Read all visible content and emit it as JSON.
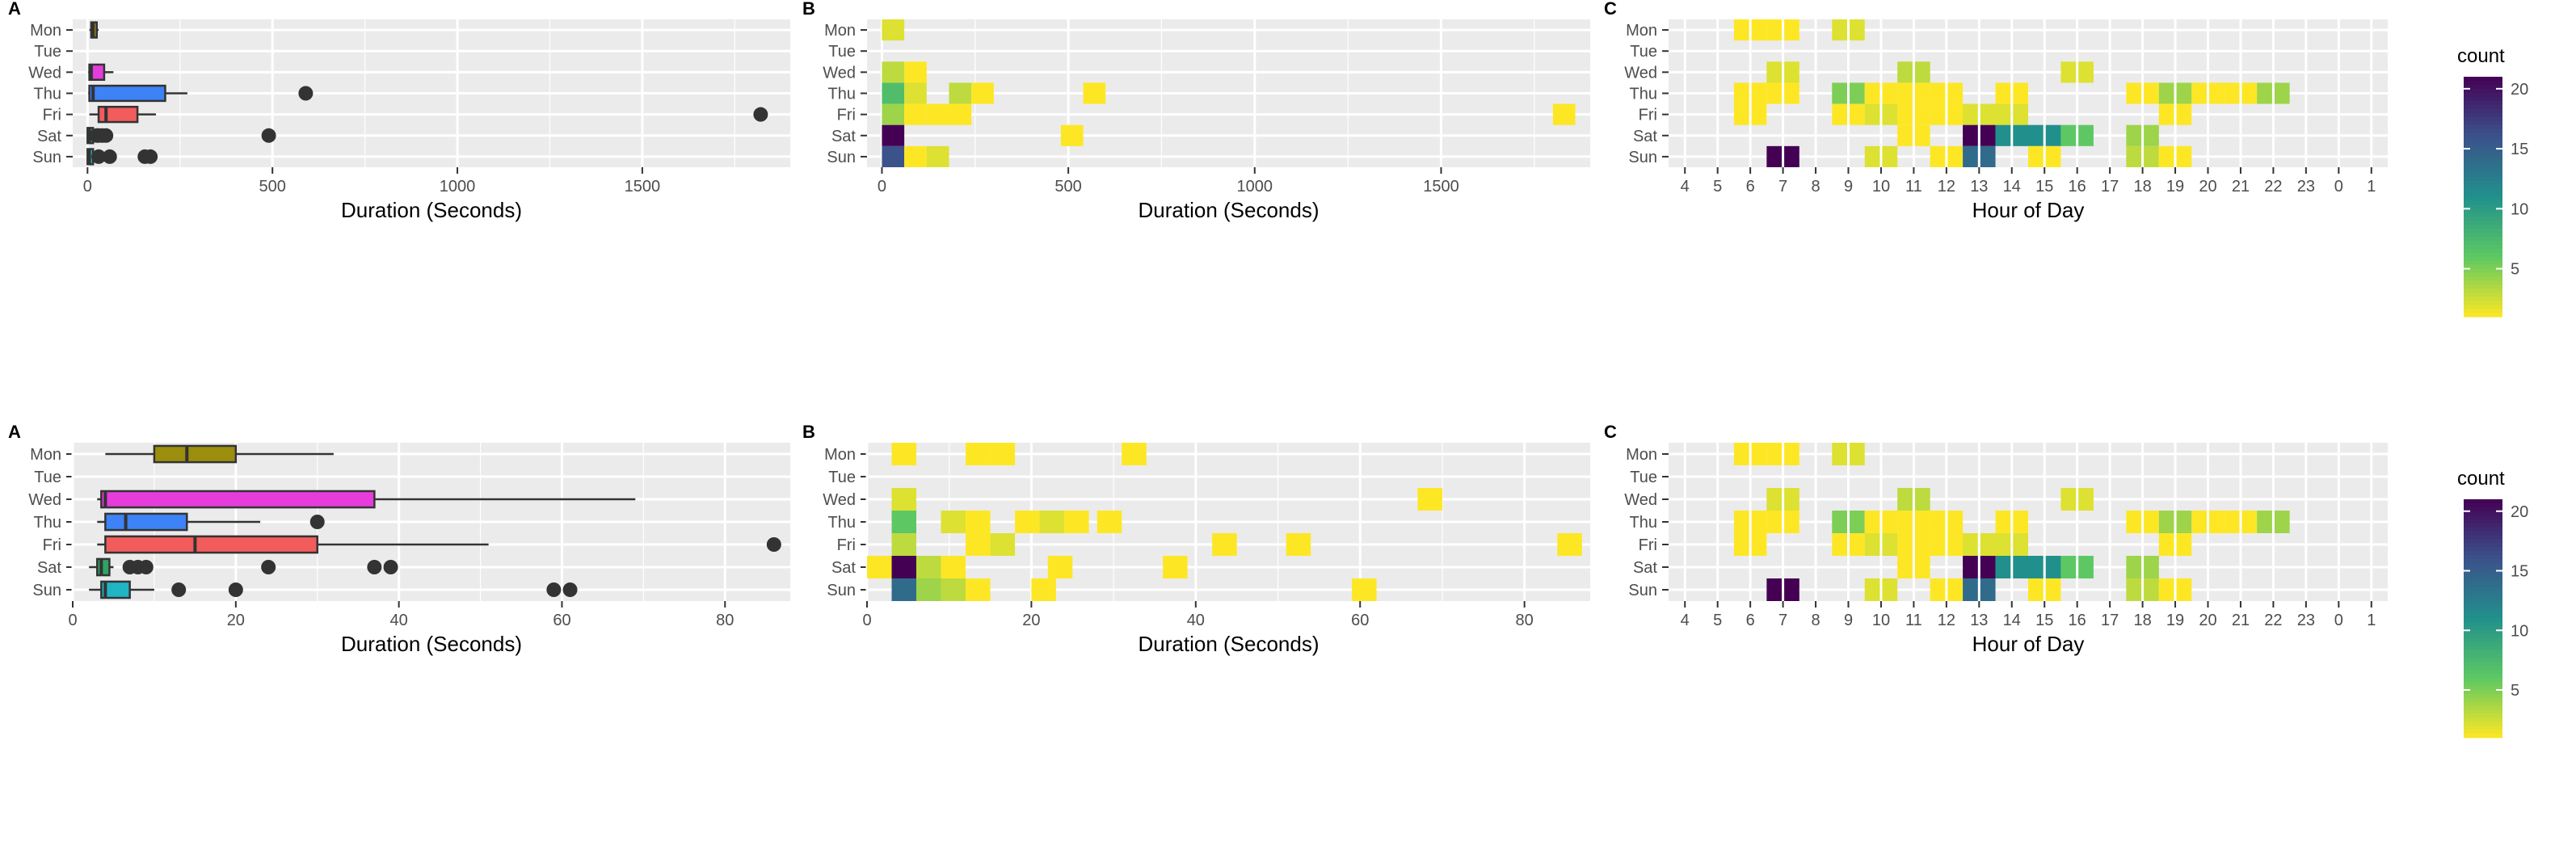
{
  "days": [
    "Mon",
    "Tue",
    "Wed",
    "Thu",
    "Fri",
    "Sat",
    "Sun"
  ],
  "hour_labels": [
    "4",
    "5",
    "6",
    "7",
    "8",
    "9",
    "10",
    "11",
    "12",
    "13",
    "14",
    "15",
    "16",
    "17",
    "18",
    "19",
    "20",
    "21",
    "22",
    "23",
    "0",
    "1"
  ],
  "colors": {
    "panel_bg": "#EBEBEB",
    "grid": "#FFFFFF",
    "text": "#4D4D4D",
    "point": "#333333",
    "viridis": [
      "#440154",
      "#3B528B",
      "#21908C",
      "#5DC863",
      "#FDE725"
    ]
  },
  "legend": {
    "title": "count",
    "ticks": [
      5,
      10,
      15,
      20
    ],
    "min": 1,
    "max": 21
  },
  "chart_data": [
    {
      "type": "boxplot",
      "row": 0,
      "panel_tag": "A",
      "xlabel": "Duration (Seconds)",
      "xlim": [
        -40,
        1900
      ],
      "xticks": [
        0,
        500,
        1000,
        1500
      ],
      "boxes": [
        {
          "day": "Mon",
          "q1": 10,
          "med": 15,
          "q3": 25,
          "wlo": 5,
          "whi": 30,
          "fill": "#9C8E0D",
          "outliers": []
        },
        {
          "day": "Wed",
          "q1": 5,
          "med": 10,
          "q3": 45,
          "wlo": 2,
          "whi": 70,
          "fill": "#E63CDC",
          "outliers": []
        },
        {
          "day": "Thu",
          "q1": 5,
          "med": 15,
          "q3": 210,
          "wlo": 2,
          "whi": 270,
          "fill": "#3D82F7",
          "outliers": [
            590
          ]
        },
        {
          "day": "Fri",
          "q1": 30,
          "med": 50,
          "q3": 135,
          "wlo": 5,
          "whi": 185,
          "fill": "#F25C5C",
          "outliers": [
            1820
          ]
        },
        {
          "day": "Sat",
          "q1": 0,
          "med": 5,
          "q3": 15,
          "wlo": 0,
          "whi": 20,
          "fill": "#2FA366",
          "outliers": [
            25,
            30,
            40,
            50,
            490
          ]
        },
        {
          "day": "Sun",
          "q1": 0,
          "med": 5,
          "q3": 15,
          "wlo": 0,
          "whi": 25,
          "fill": "#1FB5C4",
          "outliers": [
            30,
            60,
            155,
            170
          ]
        }
      ]
    },
    {
      "type": "heatmap",
      "row": 0,
      "panel_tag": "B",
      "xlabel": "Duration (Seconds)",
      "xlim": [
        -40,
        1900
      ],
      "xticks": [
        0,
        500,
        1000,
        1500
      ],
      "binwidth": 60,
      "cells": [
        {
          "day": "Mon",
          "x": 0,
          "count": 2
        },
        {
          "day": "Wed",
          "x": 0,
          "count": 3
        },
        {
          "day": "Wed",
          "x": 60,
          "count": 1
        },
        {
          "day": "Thu",
          "x": 0,
          "count": 7
        },
        {
          "day": "Thu",
          "x": 60,
          "count": 2
        },
        {
          "day": "Thu",
          "x": 180,
          "count": 3
        },
        {
          "day": "Thu",
          "x": 240,
          "count": 1
        },
        {
          "day": "Thu",
          "x": 540,
          "count": 1
        },
        {
          "day": "Fri",
          "x": 0,
          "count": 4
        },
        {
          "day": "Fri",
          "x": 60,
          "count": 1
        },
        {
          "day": "Fri",
          "x": 120,
          "count": 1
        },
        {
          "day": "Fri",
          "x": 180,
          "count": 1
        },
        {
          "day": "Fri",
          "x": 1800,
          "count": 1
        },
        {
          "day": "Sat",
          "x": 0,
          "count": 21
        },
        {
          "day": "Sat",
          "x": 480,
          "count": 1
        },
        {
          "day": "Sun",
          "x": 0,
          "count": 16
        },
        {
          "day": "Sun",
          "x": 60,
          "count": 1
        },
        {
          "day": "Sun",
          "x": 120,
          "count": 2
        }
      ]
    },
    {
      "type": "heatmap",
      "row": 0,
      "panel_tag": "C",
      "xlabel": "Hour of Day",
      "cells": [
        {
          "day": "Mon",
          "h": "6",
          "count": 1
        },
        {
          "day": "Mon",
          "h": "7",
          "count": 1
        },
        {
          "day": "Mon",
          "h": "9",
          "count": 2
        },
        {
          "day": "Wed",
          "h": "7",
          "count": 2
        },
        {
          "day": "Wed",
          "h": "11",
          "count": 3
        },
        {
          "day": "Wed",
          "h": "16",
          "count": 2
        },
        {
          "day": "Thu",
          "h": "6",
          "count": 1
        },
        {
          "day": "Thu",
          "h": "7",
          "count": 1
        },
        {
          "day": "Thu",
          "h": "9",
          "count": 5
        },
        {
          "day": "Thu",
          "h": "10",
          "count": 1
        },
        {
          "day": "Thu",
          "h": "11",
          "count": 1
        },
        {
          "day": "Thu",
          "h": "12",
          "count": 1
        },
        {
          "day": "Thu",
          "h": "14",
          "count": 1
        },
        {
          "day": "Thu",
          "h": "18",
          "count": 1
        },
        {
          "day": "Thu",
          "h": "19",
          "count": 4
        },
        {
          "day": "Thu",
          "h": "20",
          "count": 1
        },
        {
          "day": "Thu",
          "h": "21",
          "count": 1
        },
        {
          "day": "Thu",
          "h": "22",
          "count": 4
        },
        {
          "day": "Fri",
          "h": "6",
          "count": 1
        },
        {
          "day": "Fri",
          "h": "9",
          "count": 1
        },
        {
          "day": "Fri",
          "h": "10",
          "count": 2
        },
        {
          "day": "Fri",
          "h": "11",
          "count": 1
        },
        {
          "day": "Fri",
          "h": "12",
          "count": 1
        },
        {
          "day": "Fri",
          "h": "13",
          "count": 2
        },
        {
          "day": "Fri",
          "h": "14",
          "count": 2
        },
        {
          "day": "Fri",
          "h": "19",
          "count": 1
        },
        {
          "day": "Sat",
          "h": "11",
          "count": 1
        },
        {
          "day": "Sat",
          "h": "13",
          "count": 21
        },
        {
          "day": "Sat",
          "h": "14",
          "count": 11
        },
        {
          "day": "Sat",
          "h": "15",
          "count": 11
        },
        {
          "day": "Sat",
          "h": "16",
          "count": 6
        },
        {
          "day": "Sat",
          "h": "18",
          "count": 4
        },
        {
          "day": "Sun",
          "h": "7",
          "count": 21
        },
        {
          "day": "Sun",
          "h": "10",
          "count": 2
        },
        {
          "day": "Sun",
          "h": "12",
          "count": 1
        },
        {
          "day": "Sun",
          "h": "13",
          "count": 14
        },
        {
          "day": "Sun",
          "h": "15",
          "count": 1
        },
        {
          "day": "Sun",
          "h": "18",
          "count": 3
        },
        {
          "day": "Sun",
          "h": "19",
          "count": 1
        }
      ]
    },
    {
      "type": "boxplot",
      "row": 1,
      "panel_tag": "A",
      "xlabel": "Duration (Seconds)",
      "xlim": [
        0,
        88
      ],
      "xticks": [
        0,
        20,
        40,
        60,
        80
      ],
      "boxes": [
        {
          "day": "Mon",
          "q1": 10,
          "med": 14,
          "q3": 20,
          "wlo": 4,
          "whi": 32,
          "fill": "#9C8E0D",
          "outliers": []
        },
        {
          "day": "Wed",
          "q1": 3.5,
          "med": 4,
          "q3": 37,
          "wlo": 3,
          "whi": 69,
          "fill": "#E63CDC",
          "outliers": []
        },
        {
          "day": "Thu",
          "q1": 4,
          "med": 6.5,
          "q3": 14,
          "wlo": 3,
          "whi": 23,
          "fill": "#3D82F7",
          "outliers": [
            30
          ]
        },
        {
          "day": "Fri",
          "q1": 4,
          "med": 15,
          "q3": 30,
          "wlo": 3,
          "whi": 51,
          "fill": "#F25C5C",
          "outliers": [
            86
          ]
        },
        {
          "day": "Sat",
          "q1": 3,
          "med": 3.5,
          "q3": 4.5,
          "wlo": 2,
          "whi": 5,
          "fill": "#2FA366",
          "outliers": [
            7,
            8,
            9,
            24,
            37,
            39
          ]
        },
        {
          "day": "Sun",
          "q1": 3.5,
          "med": 4,
          "q3": 7,
          "wlo": 2,
          "whi": 10,
          "fill": "#1FB5C4",
          "outliers": [
            13,
            20,
            59,
            61
          ]
        }
      ]
    },
    {
      "type": "heatmap",
      "row": 1,
      "panel_tag": "B",
      "xlabel": "Duration (Seconds)",
      "xlim": [
        0,
        88
      ],
      "xticks": [
        0,
        20,
        40,
        60,
        80
      ],
      "binwidth": 3,
      "cells": [
        {
          "day": "Mon",
          "x": 3,
          "count": 1
        },
        {
          "day": "Mon",
          "x": 12,
          "count": 1
        },
        {
          "day": "Mon",
          "x": 15,
          "count": 1
        },
        {
          "day": "Mon",
          "x": 31,
          "count": 1
        },
        {
          "day": "Wed",
          "x": 3,
          "count": 2
        },
        {
          "day": "Wed",
          "x": 67,
          "count": 1
        },
        {
          "day": "Thu",
          "x": 3,
          "count": 6
        },
        {
          "day": "Thu",
          "x": 9,
          "count": 2
        },
        {
          "day": "Thu",
          "x": 12,
          "count": 1
        },
        {
          "day": "Thu",
          "x": 18,
          "count": 1
        },
        {
          "day": "Thu",
          "x": 21,
          "count": 2
        },
        {
          "day": "Thu",
          "x": 24,
          "count": 1
        },
        {
          "day": "Thu",
          "x": 28,
          "count": 1
        },
        {
          "day": "Fri",
          "x": 3,
          "count": 3
        },
        {
          "day": "Fri",
          "x": 12,
          "count": 1
        },
        {
          "day": "Fri",
          "x": 15,
          "count": 2
        },
        {
          "day": "Fri",
          "x": 42,
          "count": 1
        },
        {
          "day": "Fri",
          "x": 51,
          "count": 1
        },
        {
          "day": "Fri",
          "x": 84,
          "count": 1
        },
        {
          "day": "Sat",
          "x": 0,
          "count": 1
        },
        {
          "day": "Sat",
          "x": 3,
          "count": 21
        },
        {
          "day": "Sat",
          "x": 6,
          "count": 3
        },
        {
          "day": "Sat",
          "x": 9,
          "count": 1
        },
        {
          "day": "Sat",
          "x": 22,
          "count": 1
        },
        {
          "day": "Sat",
          "x": 36,
          "count": 1
        },
        {
          "day": "Sun",
          "x": 3,
          "count": 14
        },
        {
          "day": "Sun",
          "x": 6,
          "count": 4
        },
        {
          "day": "Sun",
          "x": 9,
          "count": 3
        },
        {
          "day": "Sun",
          "x": 12,
          "count": 1
        },
        {
          "day": "Sun",
          "x": 20,
          "count": 1
        },
        {
          "day": "Sun",
          "x": 59,
          "count": 1
        }
      ]
    },
    {
      "type": "heatmap",
      "row": 1,
      "panel_tag": "C",
      "xlabel": "Hour of Day",
      "cells": [
        {
          "day": "Mon",
          "h": "6",
          "count": 1
        },
        {
          "day": "Mon",
          "h": "7",
          "count": 1
        },
        {
          "day": "Mon",
          "h": "9",
          "count": 2
        },
        {
          "day": "Wed",
          "h": "7",
          "count": 2
        },
        {
          "day": "Wed",
          "h": "11",
          "count": 3
        },
        {
          "day": "Wed",
          "h": "16",
          "count": 2
        },
        {
          "day": "Thu",
          "h": "6",
          "count": 1
        },
        {
          "day": "Thu",
          "h": "7",
          "count": 1
        },
        {
          "day": "Thu",
          "h": "9",
          "count": 5
        },
        {
          "day": "Thu",
          "h": "10",
          "count": 1
        },
        {
          "day": "Thu",
          "h": "11",
          "count": 1
        },
        {
          "day": "Thu",
          "h": "12",
          "count": 1
        },
        {
          "day": "Thu",
          "h": "14",
          "count": 1
        },
        {
          "day": "Thu",
          "h": "18",
          "count": 1
        },
        {
          "day": "Thu",
          "h": "19",
          "count": 4
        },
        {
          "day": "Thu",
          "h": "20",
          "count": 1
        },
        {
          "day": "Thu",
          "h": "21",
          "count": 1
        },
        {
          "day": "Thu",
          "h": "22",
          "count": 4
        },
        {
          "day": "Fri",
          "h": "6",
          "count": 1
        },
        {
          "day": "Fri",
          "h": "9",
          "count": 1
        },
        {
          "day": "Fri",
          "h": "10",
          "count": 2
        },
        {
          "day": "Fri",
          "h": "11",
          "count": 1
        },
        {
          "day": "Fri",
          "h": "12",
          "count": 1
        },
        {
          "day": "Fri",
          "h": "13",
          "count": 2
        },
        {
          "day": "Fri",
          "h": "14",
          "count": 2
        },
        {
          "day": "Fri",
          "h": "19",
          "count": 1
        },
        {
          "day": "Sat",
          "h": "11",
          "count": 1
        },
        {
          "day": "Sat",
          "h": "13",
          "count": 21
        },
        {
          "day": "Sat",
          "h": "14",
          "count": 11
        },
        {
          "day": "Sat",
          "h": "15",
          "count": 11
        },
        {
          "day": "Sat",
          "h": "16",
          "count": 6
        },
        {
          "day": "Sat",
          "h": "18",
          "count": 4
        },
        {
          "day": "Sun",
          "h": "7",
          "count": 21
        },
        {
          "day": "Sun",
          "h": "10",
          "count": 2
        },
        {
          "day": "Sun",
          "h": "12",
          "count": 1
        },
        {
          "day": "Sun",
          "h": "13",
          "count": 14
        },
        {
          "day": "Sun",
          "h": "15",
          "count": 1
        },
        {
          "day": "Sun",
          "h": "18",
          "count": 3
        },
        {
          "day": "Sun",
          "h": "19",
          "count": 1
        }
      ]
    }
  ]
}
